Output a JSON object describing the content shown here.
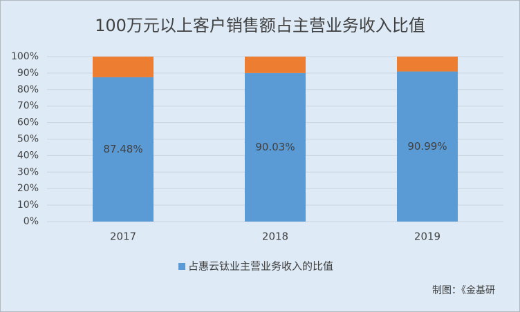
{
  "chart_data": {
    "type": "stacked_bar",
    "title": "100万元以上客户销售额占主营业务收入比值",
    "categories": [
      "2017",
      "2018",
      "2019"
    ],
    "series": [
      {
        "name": "占惠云钛业主营业务收入的比值",
        "color": "#5b9bd5",
        "values": [
          87.48,
          90.03,
          90.99
        ],
        "value_labels": [
          "87.48%",
          "90.03%",
          "90.99%"
        ]
      },
      {
        "color": "#ed7d31",
        "values": [
          12.52,
          9.97,
          9.01
        ]
      }
    ],
    "ylim": [
      0,
      100
    ],
    "yticks": [
      {
        "value": 0,
        "label": "0%"
      },
      {
        "value": 10,
        "label": "10%"
      },
      {
        "value": 20,
        "label": "20%"
      },
      {
        "value": 30,
        "label": "30%"
      },
      {
        "value": 40,
        "label": "40%"
      },
      {
        "value": 50,
        "label": "50%"
      },
      {
        "value": 60,
        "label": "60%"
      },
      {
        "value": 70,
        "label": "70%"
      },
      {
        "value": 80,
        "label": "80%"
      },
      {
        "value": 90,
        "label": "90%"
      },
      {
        "value": 100,
        "label": "100%"
      }
    ],
    "grid": true,
    "legend": "bottom",
    "note": "制图：《金基研"
  }
}
